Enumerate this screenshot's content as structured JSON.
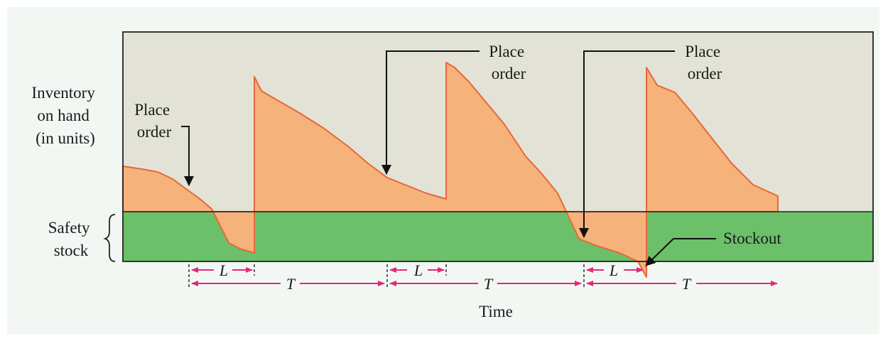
{
  "colors": {
    "panel_bg": "#f3f7f3",
    "plot_bg": "#e2e3d6",
    "inventory_fill": "#f5b27a",
    "inventory_line": "#e8663a",
    "safety_stock_fill": "#6cc06a",
    "arrow_pink": "#e0287e",
    "callout_arrow": "#111111"
  },
  "labels": {
    "y_axis": [
      "Inventory",
      "on hand",
      "(in units)"
    ],
    "safety_stock": [
      "Safety",
      "stock"
    ],
    "x_axis": "Time",
    "place_order": [
      "Place",
      "order"
    ],
    "stockout": "Stockout",
    "lead_time": "L",
    "cycle": "T"
  }
}
